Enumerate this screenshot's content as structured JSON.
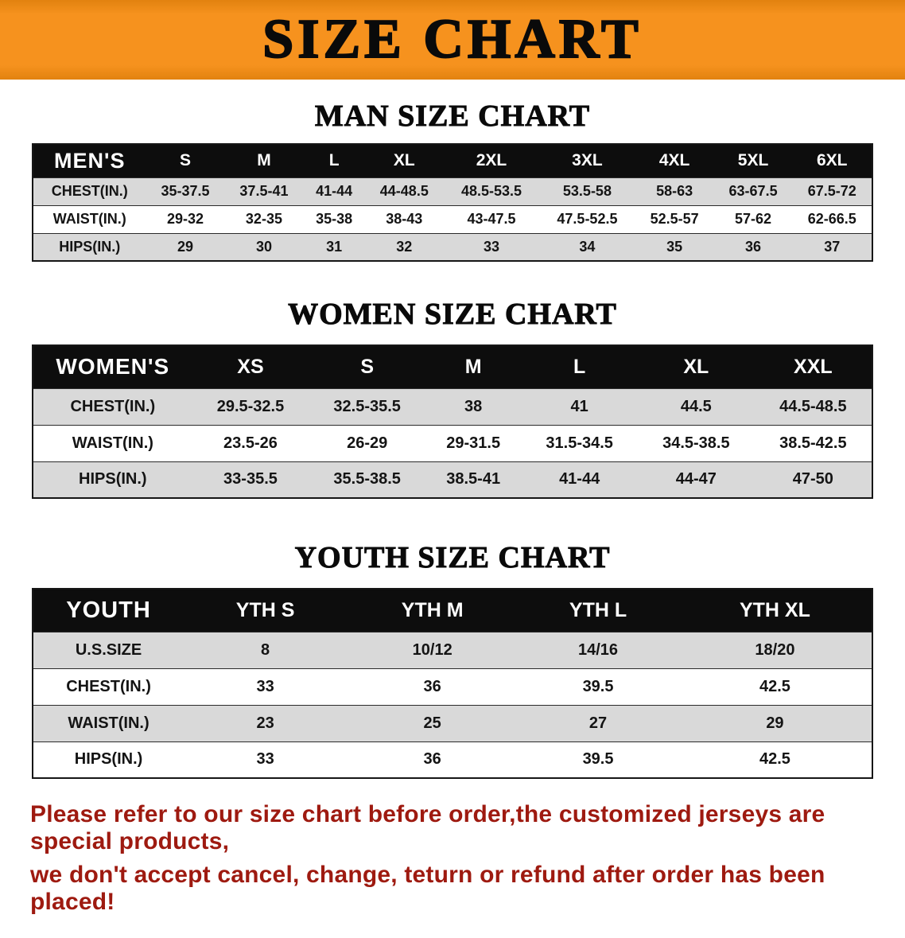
{
  "banner": {
    "title": "SIZE CHART"
  },
  "sections": {
    "men": {
      "heading": "MAN SIZE CHART",
      "table": {
        "corner": "MEN'S",
        "columns": [
          "S",
          "M",
          "L",
          "XL",
          "2XL",
          "3XL",
          "4XL",
          "5XL",
          "6XL"
        ],
        "rows": [
          {
            "label": "CHEST(IN.)",
            "values": [
              "35-37.5",
              "37.5-41",
              "41-44",
              "44-48.5",
              "48.5-53.5",
              "53.5-58",
              "58-63",
              "63-67.5",
              "67.5-72"
            ]
          },
          {
            "label": "WAIST(IN.)",
            "values": [
              "29-32",
              "32-35",
              "35-38",
              "38-43",
              "43-47.5",
              "47.5-52.5",
              "52.5-57",
              "57-62",
              "62-66.5"
            ]
          },
          {
            "label": "HIPS(IN.)",
            "values": [
              "29",
              "30",
              "31",
              "32",
              "33",
              "34",
              "35",
              "36",
              "37"
            ]
          }
        ]
      }
    },
    "women": {
      "heading": "WOMEN SIZE CHART",
      "table": {
        "corner": "WOMEN'S",
        "columns": [
          "XS",
          "S",
          "M",
          "L",
          "XL",
          "XXL"
        ],
        "rows": [
          {
            "label": "CHEST(IN.)",
            "values": [
              "29.5-32.5",
              "32.5-35.5",
              "38",
              "41",
              "44.5",
              "44.5-48.5"
            ]
          },
          {
            "label": "WAIST(IN.)",
            "values": [
              "23.5-26",
              "26-29",
              "29-31.5",
              "31.5-34.5",
              "34.5-38.5",
              "38.5-42.5"
            ]
          },
          {
            "label": "HIPS(IN.)",
            "values": [
              "33-35.5",
              "35.5-38.5",
              "38.5-41",
              "41-44",
              "44-47",
              "47-50"
            ]
          }
        ]
      }
    },
    "youth": {
      "heading": "YOUTH SIZE CHART",
      "table": {
        "corner": "YOUTH",
        "columns": [
          "YTH S",
          "YTH M",
          "YTH L",
          "YTH XL"
        ],
        "rows": [
          {
            "label": "U.S.SIZE",
            "values": [
              "8",
              "10/12",
              "14/16",
              "18/20"
            ]
          },
          {
            "label": "CHEST(IN.)",
            "values": [
              "33",
              "36",
              "39.5",
              "42.5"
            ]
          },
          {
            "label": "WAIST(IN.)",
            "values": [
              "23",
              "25",
              "27",
              "29"
            ]
          },
          {
            "label": "HIPS(IN.)",
            "values": [
              "33",
              "36",
              "39.5",
              "42.5"
            ]
          }
        ]
      }
    }
  },
  "footer": {
    "line1": "Please refer to our size chart before order,the customized jerseys are special products,",
    "line2": "we don't accept cancel, change, teturn or refund after order has been placed!"
  },
  "colors": {
    "banner_bg": "#f6921e",
    "table_header_bg": "#0d0d0d",
    "stripe": "#d9d9d9",
    "footer_text": "#9e1a10"
  }
}
